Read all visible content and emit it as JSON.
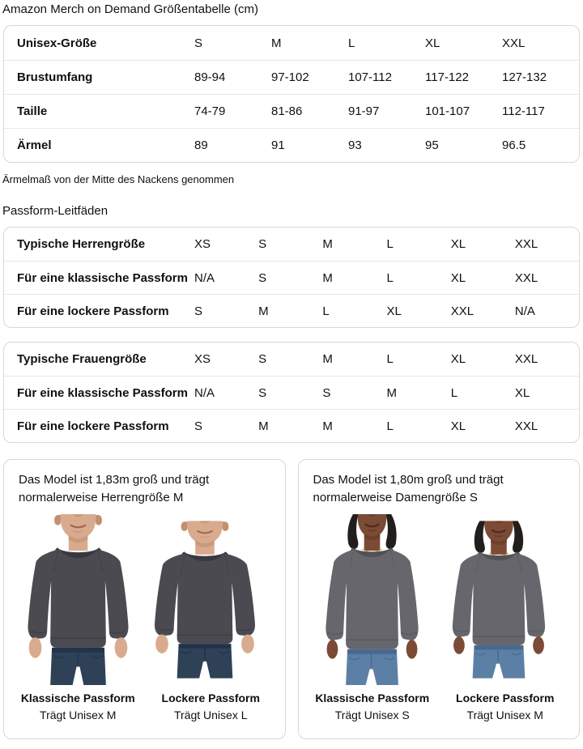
{
  "page": {
    "title": "Amazon Merch on Demand Größentabelle (cm)"
  },
  "size_table": {
    "rows": [
      {
        "label": "Unisex-Größe",
        "values": [
          "S",
          "M",
          "L",
          "XL",
          "XXL"
        ]
      },
      {
        "label": "Brustumfang",
        "values": [
          "89-94",
          "97-102",
          "107-112",
          "117-122",
          "127-132"
        ]
      },
      {
        "label": "Taille",
        "values": [
          "74-79",
          "81-86",
          "91-97",
          "101-107",
          "112-117"
        ]
      },
      {
        "label": "Ärmel",
        "values": [
          "89",
          "91",
          "93",
          "95",
          "96.5"
        ]
      }
    ]
  },
  "note": "Ärmelmaß von der Mitte des Nackens genommen",
  "fit_guides_heading": "Passform-Leitfäden",
  "men_fit_table": {
    "rows": [
      {
        "label": "Typische Herrengröße",
        "values": [
          "XS",
          "S",
          "M",
          "L",
          "XL",
          "XXL"
        ]
      },
      {
        "label": "Für eine klassische Passform",
        "values": [
          "N/A",
          "S",
          "M",
          "L",
          "XL",
          "XXL"
        ]
      },
      {
        "label": "Für eine lockere Passform",
        "values": [
          "S",
          "M",
          "L",
          "XL",
          "XXL",
          "N/A"
        ]
      }
    ]
  },
  "women_fit_table": {
    "rows": [
      {
        "label": "Typische Frauengröße",
        "values": [
          "XS",
          "S",
          "M",
          "L",
          "XL",
          "XXL"
        ]
      },
      {
        "label": "Für eine klassische Passform",
        "values": [
          "N/A",
          "S",
          "S",
          "M",
          "L",
          "XL"
        ]
      },
      {
        "label": "Für eine lockere Passform",
        "values": [
          "S",
          "M",
          "M",
          "L",
          "XL",
          "XXL"
        ]
      }
    ]
  },
  "model_cards": [
    {
      "description": "Das Model ist 1,83m groß und trägt normalerweise Herrengröße M",
      "figures": [
        {
          "fit_label": "Klassische Passform",
          "wears": "Trägt Unisex M"
        },
        {
          "fit_label": "Lockere Passform",
          "wears": "Trägt Unisex L"
        }
      ]
    },
    {
      "description": "Das Model ist 1,80m groß und trägt normalerweise Damengröße S",
      "figures": [
        {
          "fit_label": "Klassische Passform",
          "wears": "Trägt Unisex S"
        },
        {
          "fit_label": "Lockere Passform",
          "wears": "Trägt Unisex M"
        }
      ]
    }
  ],
  "colors": {
    "text": "#0f1111",
    "table_border": "#d5d9d9",
    "row_divider": "#e7e7e7",
    "sweatshirt_dark_heather": "#4b4a50",
    "sweatshirt_heather": "#67666c",
    "denim_dark": "#2e4157",
    "denim_light": "#5c7fa5"
  }
}
